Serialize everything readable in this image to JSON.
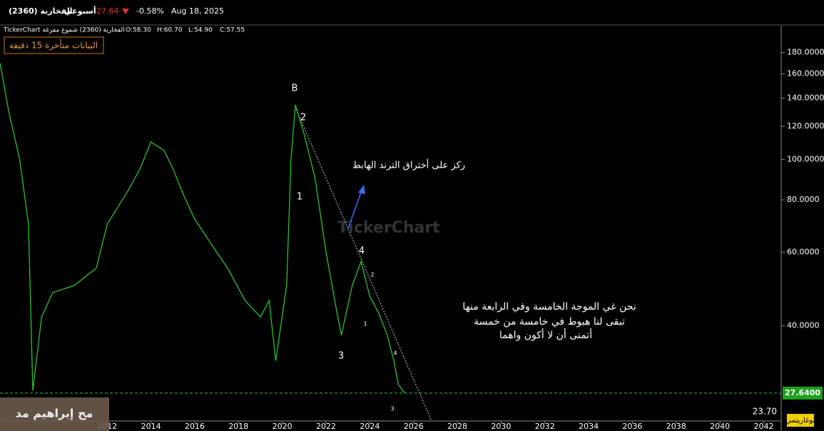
{
  "header": {
    "symbol": "الفخارية (2360)",
    "period": "أسبوعي",
    "price": "27.64",
    "change": "-0.58%",
    "date": "Aug 18, 2025"
  },
  "info_bar": {
    "source": "TickerChart الفخارية (2360) شموع مفرغة",
    "open": "O:58.30",
    "high": "H:60.70",
    "low": "L:54.90",
    "close": "C:57.55"
  },
  "delay_notice": "البيانات متأخرة 15 دقيقة",
  "watermark": "TickerChart",
  "author": "مح إبراهيم مد",
  "chart_data": {
    "type": "line",
    "color": "#2fbf2f",
    "log_scale": true,
    "x": [
      2007.1,
      2007.5,
      2008.0,
      2008.4,
      2008.6,
      2009.0,
      2009.5,
      2010.5,
      2011.5,
      2012.0,
      2013.0,
      2013.5,
      2014.0,
      2014.6,
      2015.0,
      2015.5,
      2016.0,
      2017.0,
      2017.5,
      2018.3,
      2019.0,
      2019.4,
      2019.7,
      2020.2,
      2020.4,
      2020.6,
      2021.0,
      2021.5,
      2022.0,
      2022.5,
      2022.7,
      2023.2,
      2023.6,
      2024.0,
      2024.4,
      2024.8,
      2025.1,
      2025.3,
      2025.6
    ],
    "values": [
      170,
      130,
      100,
      70,
      28,
      42,
      48,
      50,
      55,
      70,
      85,
      95,
      110,
      105,
      95,
      82,
      72,
      60,
      55,
      46,
      42,
      46,
      33,
      50,
      100,
      135,
      115,
      90,
      60,
      43,
      38,
      50,
      57,
      47,
      43,
      38,
      33,
      29,
      27.64
    ],
    "xlim": [
      2007.1,
      2042.8
    ],
    "ylim": [
      23.7,
      207
    ],
    "xticks": [
      2012,
      2014,
      2016,
      2018,
      2020,
      2022,
      2024,
      2026,
      2028,
      2030,
      2032,
      2034,
      2036,
      2038,
      2040,
      2042
    ],
    "yticks": [
      {
        "value": 180,
        "label": "180.0000"
      },
      {
        "value": 160,
        "label": "160.0000"
      },
      {
        "value": 140,
        "label": "140.0000"
      },
      {
        "value": 120,
        "label": "120.0000"
      },
      {
        "value": 100,
        "label": "100.0000"
      },
      {
        "value": 80,
        "label": "80.0000"
      },
      {
        "value": 60,
        "label": "60.0000"
      },
      {
        "value": 40,
        "label": "40.0000"
      }
    ],
    "last_price": {
      "value": 27.64,
      "label": "27.6400"
    },
    "min_label": {
      "value": 23.7,
      "label": "23.70"
    },
    "scale_mode": "لوغاريتمي",
    "annotations": {
      "wave_b": "B",
      "wave_2": "2",
      "wave_1": "1",
      "wave_4": "4",
      "wave_3": "3",
      "sub_2": "2",
      "sub_1": "1",
      "sub_4": "4",
      "sub_3": "3",
      "focus": "ركز على أختراق الترند الهابط",
      "note_1": "نحن غي الموجة الخامسة  وفي الرابعة منها",
      "note_2": "تبقى لنا هبوط في خامسة من خمسة",
      "note_3": "أتمنى أن لا أكون واهما"
    }
  }
}
